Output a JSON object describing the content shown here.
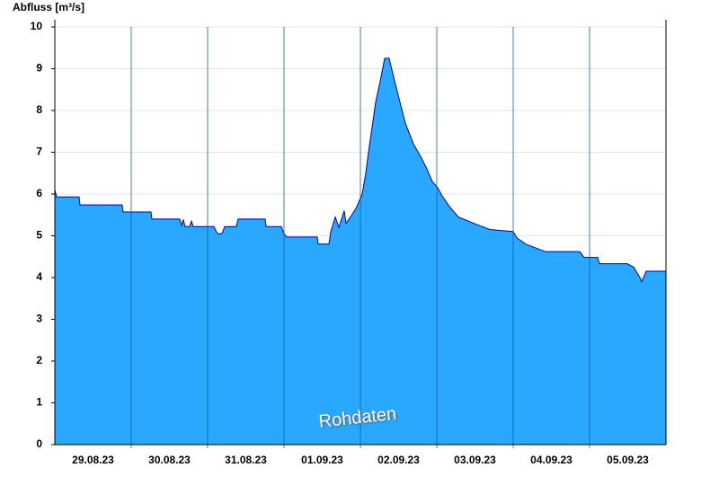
{
  "chart_data": {
    "type": "area",
    "y_label": "Abfluss [m³/s]",
    "annotation": "Rohdaten",
    "x": [
      0,
      0.024,
      0.318,
      0.329,
      0.882,
      0.894,
      1.259,
      1.271,
      1.635,
      1.659,
      1.682,
      1.706,
      1.765,
      1.788,
      1.812,
      2.082,
      2.129,
      2.188,
      2.224,
      2.376,
      2.4,
      2.753,
      2.765,
      2.965,
      3.0,
      3.035,
      3.435,
      3.447,
      3.588,
      3.612,
      3.671,
      3.718,
      3.788,
      3.812,
      3.871,
      3.941,
      4.024,
      4.071,
      4.106,
      4.153,
      4.2,
      4.259,
      4.318,
      4.376,
      4.435,
      4.518,
      4.588,
      4.694,
      4.788,
      4.871,
      4.941,
      5.012,
      5.071,
      5.165,
      5.282,
      5.482,
      5.694,
      6.0,
      6.047,
      6.165,
      6.424,
      6.871,
      6.929,
      7.106,
      7.129,
      7.494,
      7.576,
      7.659,
      7.682,
      7.741,
      8
    ],
    "values": [
      6.1,
      5.93,
      5.93,
      5.74,
      5.74,
      5.57,
      5.57,
      5.4,
      5.4,
      5.25,
      5.38,
      5.22,
      5.22,
      5.35,
      5.22,
      5.22,
      5.05,
      5.05,
      5.22,
      5.22,
      5.4,
      5.4,
      5.22,
      5.22,
      5.05,
      4.97,
      4.97,
      4.8,
      4.8,
      5.1,
      5.45,
      5.2,
      5.6,
      5.3,
      5.45,
      5.65,
      6.0,
      6.5,
      7.0,
      7.6,
      8.2,
      8.7,
      9.25,
      9.25,
      8.8,
      8.2,
      7.7,
      7.2,
      6.9,
      6.6,
      6.3,
      6.15,
      5.95,
      5.7,
      5.45,
      5.3,
      5.15,
      5.1,
      4.95,
      4.8,
      4.62,
      4.62,
      4.48,
      4.48,
      4.33,
      4.33,
      4.25,
      4.0,
      3.9,
      4.15,
      4.15
    ],
    "color": "#29a8ff",
    "line_color": "#0000a0",
    "xlim": [
      0,
      8
    ],
    "xticks": [
      {
        "value": 0.5,
        "label": "29.08.23"
      },
      {
        "value": 1.5,
        "label": "30.08.23"
      },
      {
        "value": 2.5,
        "label": "31.08.23"
      },
      {
        "value": 3.5,
        "label": "01.09.23"
      },
      {
        "value": 4.5,
        "label": "02.09.23"
      },
      {
        "value": 5.5,
        "label": "03.09.23"
      },
      {
        "value": 6.5,
        "label": "04.09.23"
      },
      {
        "value": 7.5,
        "label": "05.09.23"
      }
    ],
    "xminorticks": [
      1,
      2,
      3,
      4,
      5,
      6,
      7
    ],
    "ylim": [
      0,
      10
    ],
    "yticks": [
      0,
      1,
      2,
      3,
      4,
      5,
      6,
      7,
      8,
      9,
      10
    ],
    "grid": true
  }
}
